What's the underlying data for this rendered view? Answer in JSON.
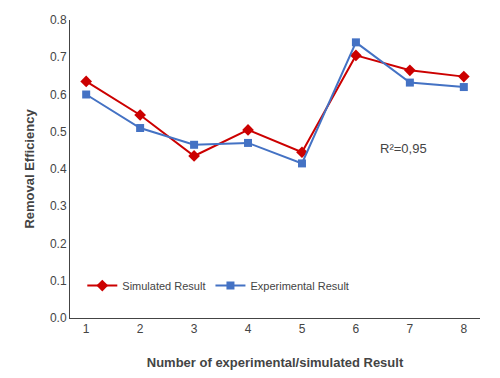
{
  "chart_data": {
    "type": "line",
    "xlabel": "Number of experimental/simulated Result",
    "ylabel": "Removal Efficiency",
    "x": [
      1,
      2,
      3,
      4,
      5,
      6,
      7,
      8
    ],
    "series": [
      {
        "name": "Simulated Result",
        "color": "#CC0000",
        "marker": "diamond",
        "values": [
          0.635,
          0.545,
          0.435,
          0.505,
          0.445,
          0.705,
          0.665,
          0.648
        ]
      },
      {
        "name": "Experimental Result",
        "color": "#4472C4",
        "marker": "square",
        "values": [
          0.6,
          0.51,
          0.465,
          0.47,
          0.415,
          0.74,
          0.632,
          0.62
        ]
      }
    ],
    "xlim": [
      0.7,
      8.3
    ],
    "ylim": [
      0,
      0.8
    ],
    "xticks": [
      1,
      2,
      3,
      4,
      5,
      6,
      7,
      8
    ],
    "yticks": [
      {
        "value": 0,
        "label": "0.0"
      },
      0.1,
      0.2,
      0.3,
      0.4,
      0.5,
      0.6,
      0.7,
      0.8
    ],
    "annotations": [
      {
        "text": "R²=0,95",
        "x": 6.4,
        "y": 0.43
      }
    ],
    "legend": "lower left",
    "grid": false
  }
}
